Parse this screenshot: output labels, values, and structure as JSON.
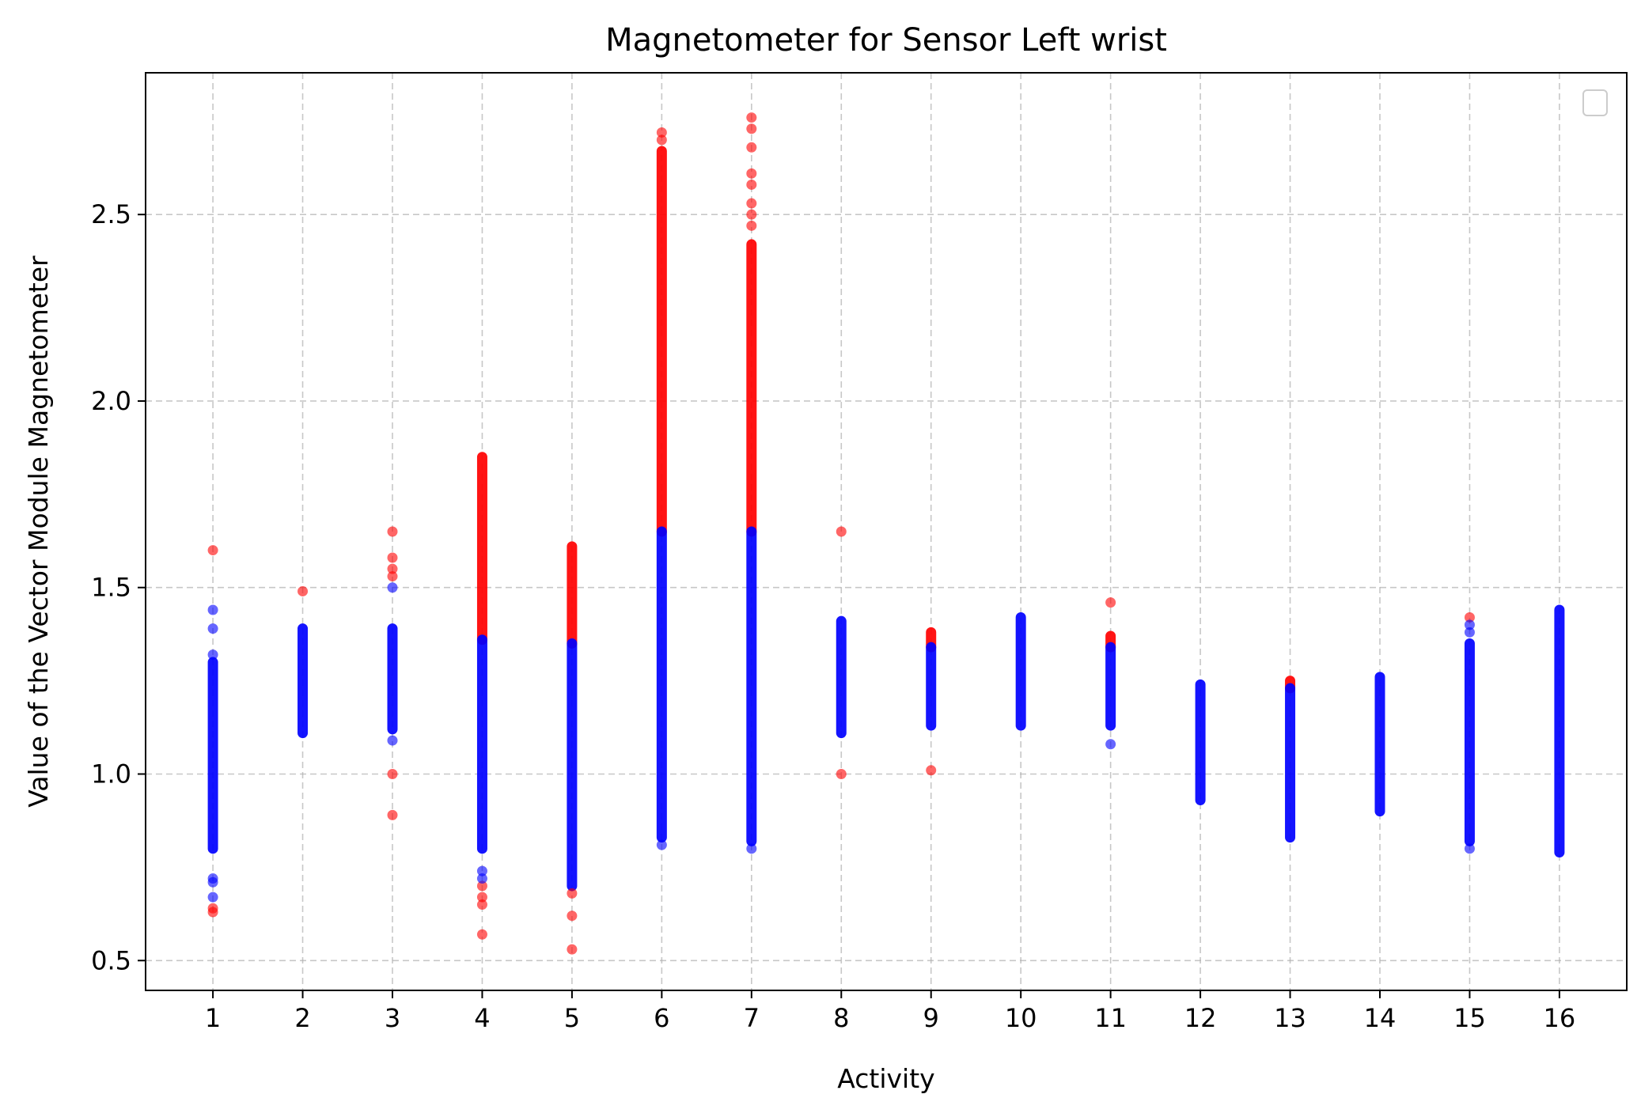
{
  "chart_data": {
    "type": "scatter",
    "title": "Magnetometer for Sensor Left wrist",
    "xlabel": "Activity",
    "ylabel": "Value of the Vector Module Magnetometer",
    "xlim": [
      0.25,
      16.75
    ],
    "ylim": [
      0.42,
      2.88
    ],
    "x_ticks": [
      1,
      2,
      3,
      4,
      5,
      6,
      7,
      8,
      9,
      10,
      11,
      12,
      13,
      14,
      15,
      16
    ],
    "y_ticks": [
      0.5,
      1.0,
      1.5,
      2.0,
      2.5
    ],
    "grid": true,
    "legend": "top-right (empty)",
    "colors": {
      "outlier": "#ff0000",
      "normal": "#0000ff"
    },
    "activities": [
      {
        "x": 1,
        "normal_range": [
          0.8,
          1.3
        ],
        "normal_points": [
          1.39,
          1.44,
          1.32,
          0.72,
          0.71,
          0.67
        ],
        "outlier_points": [
          1.6,
          0.64,
          0.63
        ]
      },
      {
        "x": 2,
        "normal_range": [
          1.11,
          1.39
        ],
        "normal_points": [],
        "outlier_points": [
          1.49
        ]
      },
      {
        "x": 3,
        "normal_range": [
          1.12,
          1.39
        ],
        "normal_points": [
          1.09,
          1.5
        ],
        "outlier_points": [
          1.65,
          1.58,
          1.55,
          1.53,
          1.0,
          0.89
        ]
      },
      {
        "x": 4,
        "normal_range": [
          0.8,
          1.36
        ],
        "normal_points": [
          0.74,
          0.72
        ],
        "outlier_range": [
          1.36,
          1.85
        ],
        "outlier_points": [
          0.7,
          0.67,
          0.65,
          0.57
        ]
      },
      {
        "x": 5,
        "normal_range": [
          0.7,
          1.35
        ],
        "normal_points": [],
        "outlier_range": [
          1.35,
          1.61
        ],
        "outlier_points": [
          0.68,
          0.62,
          0.53
        ]
      },
      {
        "x": 6,
        "normal_range": [
          0.83,
          1.65
        ],
        "normal_points": [
          0.81
        ],
        "outlier_range": [
          1.65,
          2.67
        ],
        "outlier_points": [
          2.72,
          2.7
        ]
      },
      {
        "x": 7,
        "normal_range": [
          0.82,
          1.65
        ],
        "normal_points": [
          0.8
        ],
        "outlier_range": [
          1.65,
          2.42
        ],
        "outlier_points": [
          2.76,
          2.73,
          2.68,
          2.61,
          2.58,
          2.53,
          2.5,
          2.47
        ]
      },
      {
        "x": 8,
        "normal_range": [
          1.11,
          1.41
        ],
        "normal_points": [],
        "outlier_points": [
          1.65,
          1.0
        ]
      },
      {
        "x": 9,
        "normal_range": [
          1.13,
          1.34
        ],
        "normal_points": [],
        "outlier_range": [
          1.34,
          1.38
        ],
        "outlier_points": [
          1.01
        ]
      },
      {
        "x": 10,
        "normal_range": [
          1.13,
          1.42
        ],
        "normal_points": [],
        "outlier_points": []
      },
      {
        "x": 11,
        "normal_range": [
          1.13,
          1.34
        ],
        "normal_points": [
          1.08
        ],
        "outlier_range": [
          1.34,
          1.37
        ],
        "outlier_points": [
          1.46
        ]
      },
      {
        "x": 12,
        "normal_range": [
          0.93,
          1.24
        ],
        "normal_points": [],
        "outlier_points": []
      },
      {
        "x": 13,
        "normal_range": [
          0.83,
          1.23
        ],
        "normal_points": [],
        "outlier_range": [
          1.23,
          1.25
        ],
        "outlier_points": []
      },
      {
        "x": 14,
        "normal_range": [
          0.9,
          1.26
        ],
        "normal_points": [],
        "outlier_points": []
      },
      {
        "x": 15,
        "normal_range": [
          0.82,
          1.35
        ],
        "normal_points": [
          1.4,
          1.38,
          0.8
        ],
        "outlier_points": [
          1.42
        ]
      },
      {
        "x": 16,
        "normal_range": [
          0.79,
          1.44
        ],
        "normal_points": [],
        "outlier_points": []
      }
    ]
  }
}
